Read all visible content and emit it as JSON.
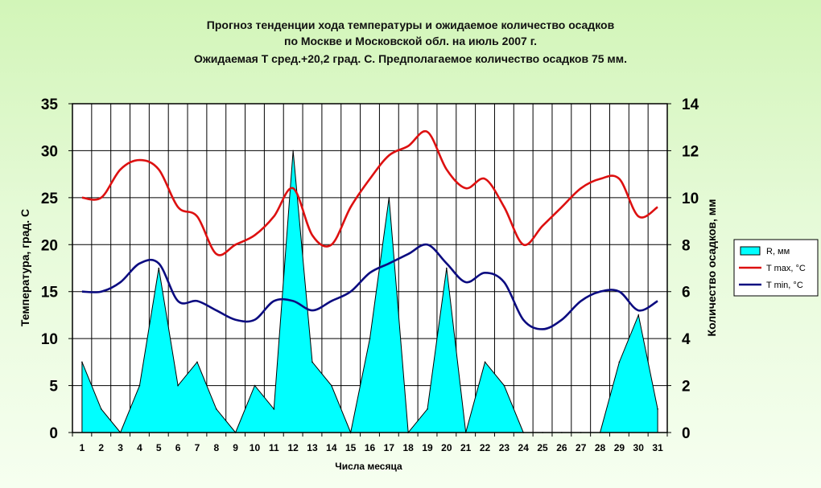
{
  "chart_data": {
    "type": "line",
    "title_lines": [
      "Прогноз тенденции хода температуры и ожидаемое количество осадков",
      "по Москве и Московской обл. на июль 2007 г.",
      "Ожидаемая Т сред.+20,2 град. С. Предполагаемое количество осадков 75 мм."
    ],
    "xlabel": "Числа месяца",
    "ylabel_left": "Температура, град. С",
    "ylabel_right": "Количество осадков, мм",
    "y_left_range": [
      0,
      35
    ],
    "y_left_ticks": [
      0,
      5,
      10,
      15,
      20,
      25,
      30,
      35
    ],
    "y_right_range": [
      0,
      14
    ],
    "y_right_ticks": [
      0,
      2,
      4,
      6,
      8,
      10,
      12,
      14
    ],
    "x": [
      1,
      2,
      3,
      4,
      5,
      6,
      7,
      8,
      9,
      10,
      11,
      12,
      13,
      14,
      15,
      16,
      17,
      18,
      19,
      20,
      21,
      22,
      23,
      24,
      25,
      26,
      27,
      28,
      29,
      30,
      31
    ],
    "grid": true,
    "legend_position": "right",
    "series": [
      {
        "name": "R, мм",
        "type": "area",
        "axis": "right",
        "color": "#00ffff",
        "values": [
          3,
          1,
          0,
          2,
          7,
          2,
          3,
          1,
          0,
          2,
          1,
          12,
          3,
          2,
          0,
          4,
          10,
          0,
          1,
          7,
          0,
          3,
          2,
          0,
          0,
          0,
          0,
          0,
          3,
          5,
          1
        ]
      },
      {
        "name": "T max, °C",
        "type": "line",
        "axis": "left",
        "color": "#dd1010",
        "values": [
          25,
          25,
          28,
          29,
          28,
          24,
          23,
          19,
          20,
          21,
          23,
          26,
          21,
          20,
          24,
          27,
          29.5,
          30.5,
          32,
          28,
          26,
          27,
          24,
          20,
          22,
          24,
          26,
          27,
          27,
          23,
          24
        ]
      },
      {
        "name": "T min, °C",
        "type": "line",
        "axis": "left",
        "color": "#0b0b80",
        "values": [
          15,
          15,
          16,
          18,
          18,
          14,
          14,
          13,
          12,
          12,
          14,
          14,
          13,
          14,
          15,
          17,
          18,
          19,
          20,
          18,
          16,
          17,
          16,
          12,
          11,
          12,
          14,
          15,
          15,
          13,
          14
        ]
      }
    ]
  }
}
